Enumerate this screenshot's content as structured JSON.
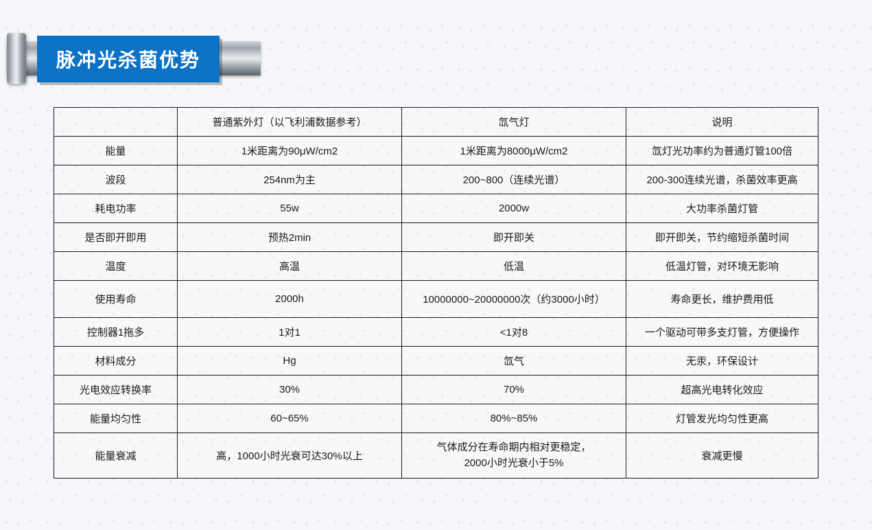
{
  "colors": {
    "title_bg": "#0c72c6",
    "border": "#1a1a1a",
    "text": "#1a1a1a"
  },
  "title": "脉冲光杀菌优势",
  "table": {
    "headers": [
      "",
      "普通紫外灯（以飞利浦数据参考）",
      "氙气灯",
      "说明"
    ],
    "rows": [
      {
        "label": "能量",
        "uv": "1米距离为90μW/cm2",
        "xe": "1米距离为8000μW/cm2",
        "explain": "氙灯光功率约为普通灯管100倍"
      },
      {
        "label": "波段",
        "uv": "254nm为主",
        "xe": "200~800（连续光谱）",
        "explain": "200-300连续光谱，杀菌效率更高"
      },
      {
        "label": "耗电功率",
        "uv": "55w",
        "xe": "2000w",
        "explain": "大功率杀菌灯管"
      },
      {
        "label": "是否即开即用",
        "uv": "预热2min",
        "xe": "即开即关",
        "explain": "即开即关，节约缩短杀菌时间"
      },
      {
        "label": "温度",
        "uv": "高温",
        "xe": "低温",
        "explain": "低温灯管，对环境无影响"
      },
      {
        "label": "使用寿命",
        "uv": "2000h",
        "xe": "10000000~20000000次（约3000小时）",
        "explain": "寿命更长，维护费用低",
        "tall": true
      },
      {
        "label": "控制器1拖多",
        "uv": "1对1",
        "xe": "<1对8",
        "explain": "一个驱动可带多支灯管，方便操作"
      },
      {
        "label": "材料成分",
        "uv": "Hg",
        "xe": "氙气",
        "explain": "无汞，环保设计"
      },
      {
        "label": "光电效应转换率",
        "uv": "30%",
        "xe": "70%",
        "explain": "超高光电转化效应"
      },
      {
        "label": "能量均匀性",
        "uv": "60~65%",
        "xe": "80%~85%",
        "explain": "灯管发光均匀性更高"
      },
      {
        "label": "能量衰减",
        "uv": "高，1000小时光衰可达30%以上",
        "xe": "气体成分在寿命期内相对更稳定，\n2000小时光衰小于5%",
        "explain": "衰减更慢"
      }
    ]
  }
}
